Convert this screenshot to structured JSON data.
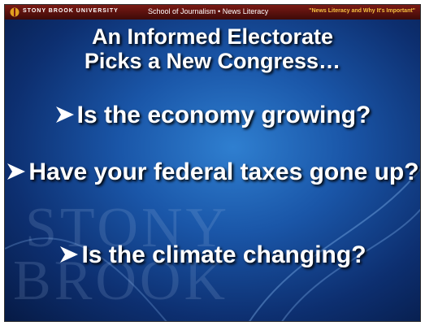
{
  "header": {
    "school": "STONY BROOK UNIVERSITY",
    "course": "School of Journalism • News Literacy",
    "lecture": "\"News Literacy and Why It's Important\""
  },
  "slide": {
    "title": [
      "An Informed Electorate",
      "Picks a New Congress…"
    ],
    "bullets": [
      "Is the economy growing?",
      "Have your federal taxes gone up?",
      "Is the climate changing?"
    ],
    "watermark": [
      "STONY",
      "BROOK"
    ]
  }
}
